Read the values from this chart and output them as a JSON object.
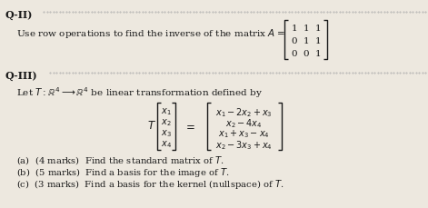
{
  "bg_color": "#ede8df",
  "text_color": "#1a1a1a",
  "title_q2": "Q-II)",
  "title_q3": "Q-III)",
  "matrix_A": [
    [
      1,
      1,
      1
    ],
    [
      0,
      1,
      1
    ],
    [
      0,
      0,
      1
    ]
  ],
  "parts": [
    "(a)  (4 marks)  Find the standard matrix of $T$.",
    "(b)  (5 marks)  Find a basis for the image of $T$.",
    "(c)  (3 marks)  Find a basis for the kernel (nullspace) of $T$."
  ]
}
